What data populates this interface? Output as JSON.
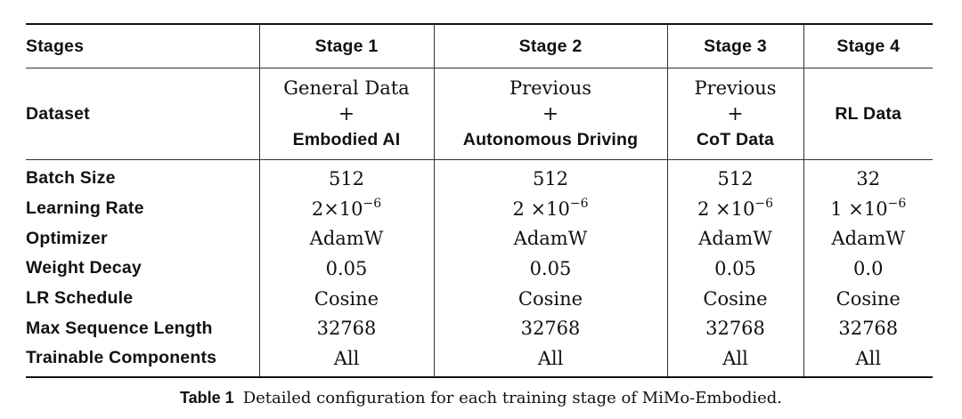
{
  "table": {
    "columns": [
      "Stages",
      "Stage 1",
      "Stage 2",
      "Stage 3",
      "Stage 4"
    ],
    "dataset": {
      "label": "Dataset",
      "cells": [
        {
          "top": "General Data",
          "plus": "+",
          "bottom": "Embodied AI"
        },
        {
          "top": "Previous",
          "plus": "+",
          "bottom": "Autonomous Driving"
        },
        {
          "top": "Previous",
          "plus": "+",
          "bottom": "CoT Data"
        },
        {
          "top": "",
          "plus": "",
          "bottom": "RL Data"
        }
      ]
    },
    "rows": [
      {
        "label": "Batch Size",
        "values": [
          "512",
          "512",
          "512",
          "32"
        ]
      },
      {
        "label": "Learning Rate",
        "values": [
          {
            "base": "2×10",
            "exp": "−6"
          },
          {
            "base": "2 ×10",
            "exp": "−6"
          },
          {
            "base": "2 ×10",
            "exp": "−6"
          },
          {
            "base": "1 ×10",
            "exp": "−6"
          }
        ]
      },
      {
        "label": "Optimizer",
        "values": [
          "AdamW",
          "AdamW",
          "AdamW",
          "AdamW"
        ]
      },
      {
        "label": "Weight Decay",
        "values": [
          "0.05",
          "0.05",
          "0.05",
          "0.0"
        ]
      },
      {
        "label": "LR Schedule",
        "values": [
          "Cosine",
          "Cosine",
          "Cosine",
          "Cosine"
        ]
      },
      {
        "label": "Max Sequence Length",
        "values": [
          "32768",
          "32768",
          "32768",
          "32768"
        ]
      },
      {
        "label": "Trainable Components",
        "values": [
          "All",
          "All",
          "All",
          "All"
        ]
      }
    ]
  },
  "caption": {
    "label": "Table 1",
    "text": "Detailed configuration for each training stage of MiMo-Embodied."
  }
}
